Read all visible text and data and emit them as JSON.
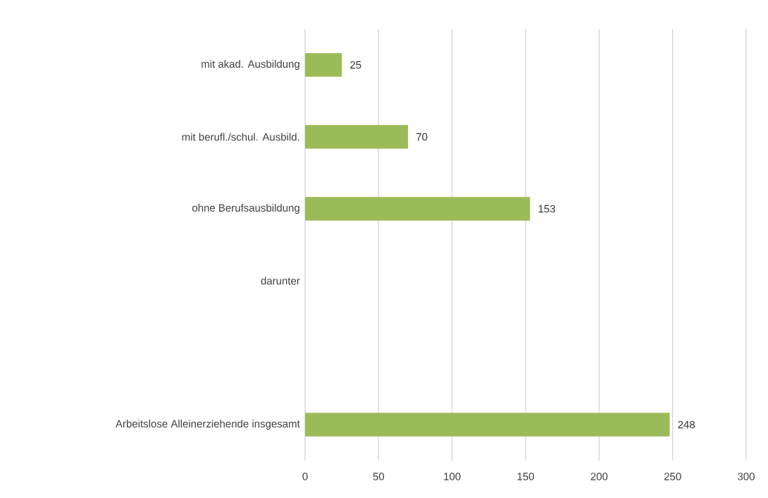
{
  "chart_data": {
    "type": "bar",
    "orientation": "horizontal",
    "categories": [
      "mit akad. Ausbildung",
      "mit berufl./schul. Ausbild.",
      "ohne Berufsausbildung",
      "darunter",
      null,
      "Arbeitslose Alleinerziehende insgesamt"
    ],
    "values": [
      25,
      70,
      153,
      null,
      null,
      248
    ],
    "color": "#9bbb59",
    "xlim": [
      0,
      300
    ],
    "xticks": [
      0,
      50,
      100,
      150,
      200,
      250,
      300
    ],
    "grid": "x",
    "data_labels": true
  }
}
